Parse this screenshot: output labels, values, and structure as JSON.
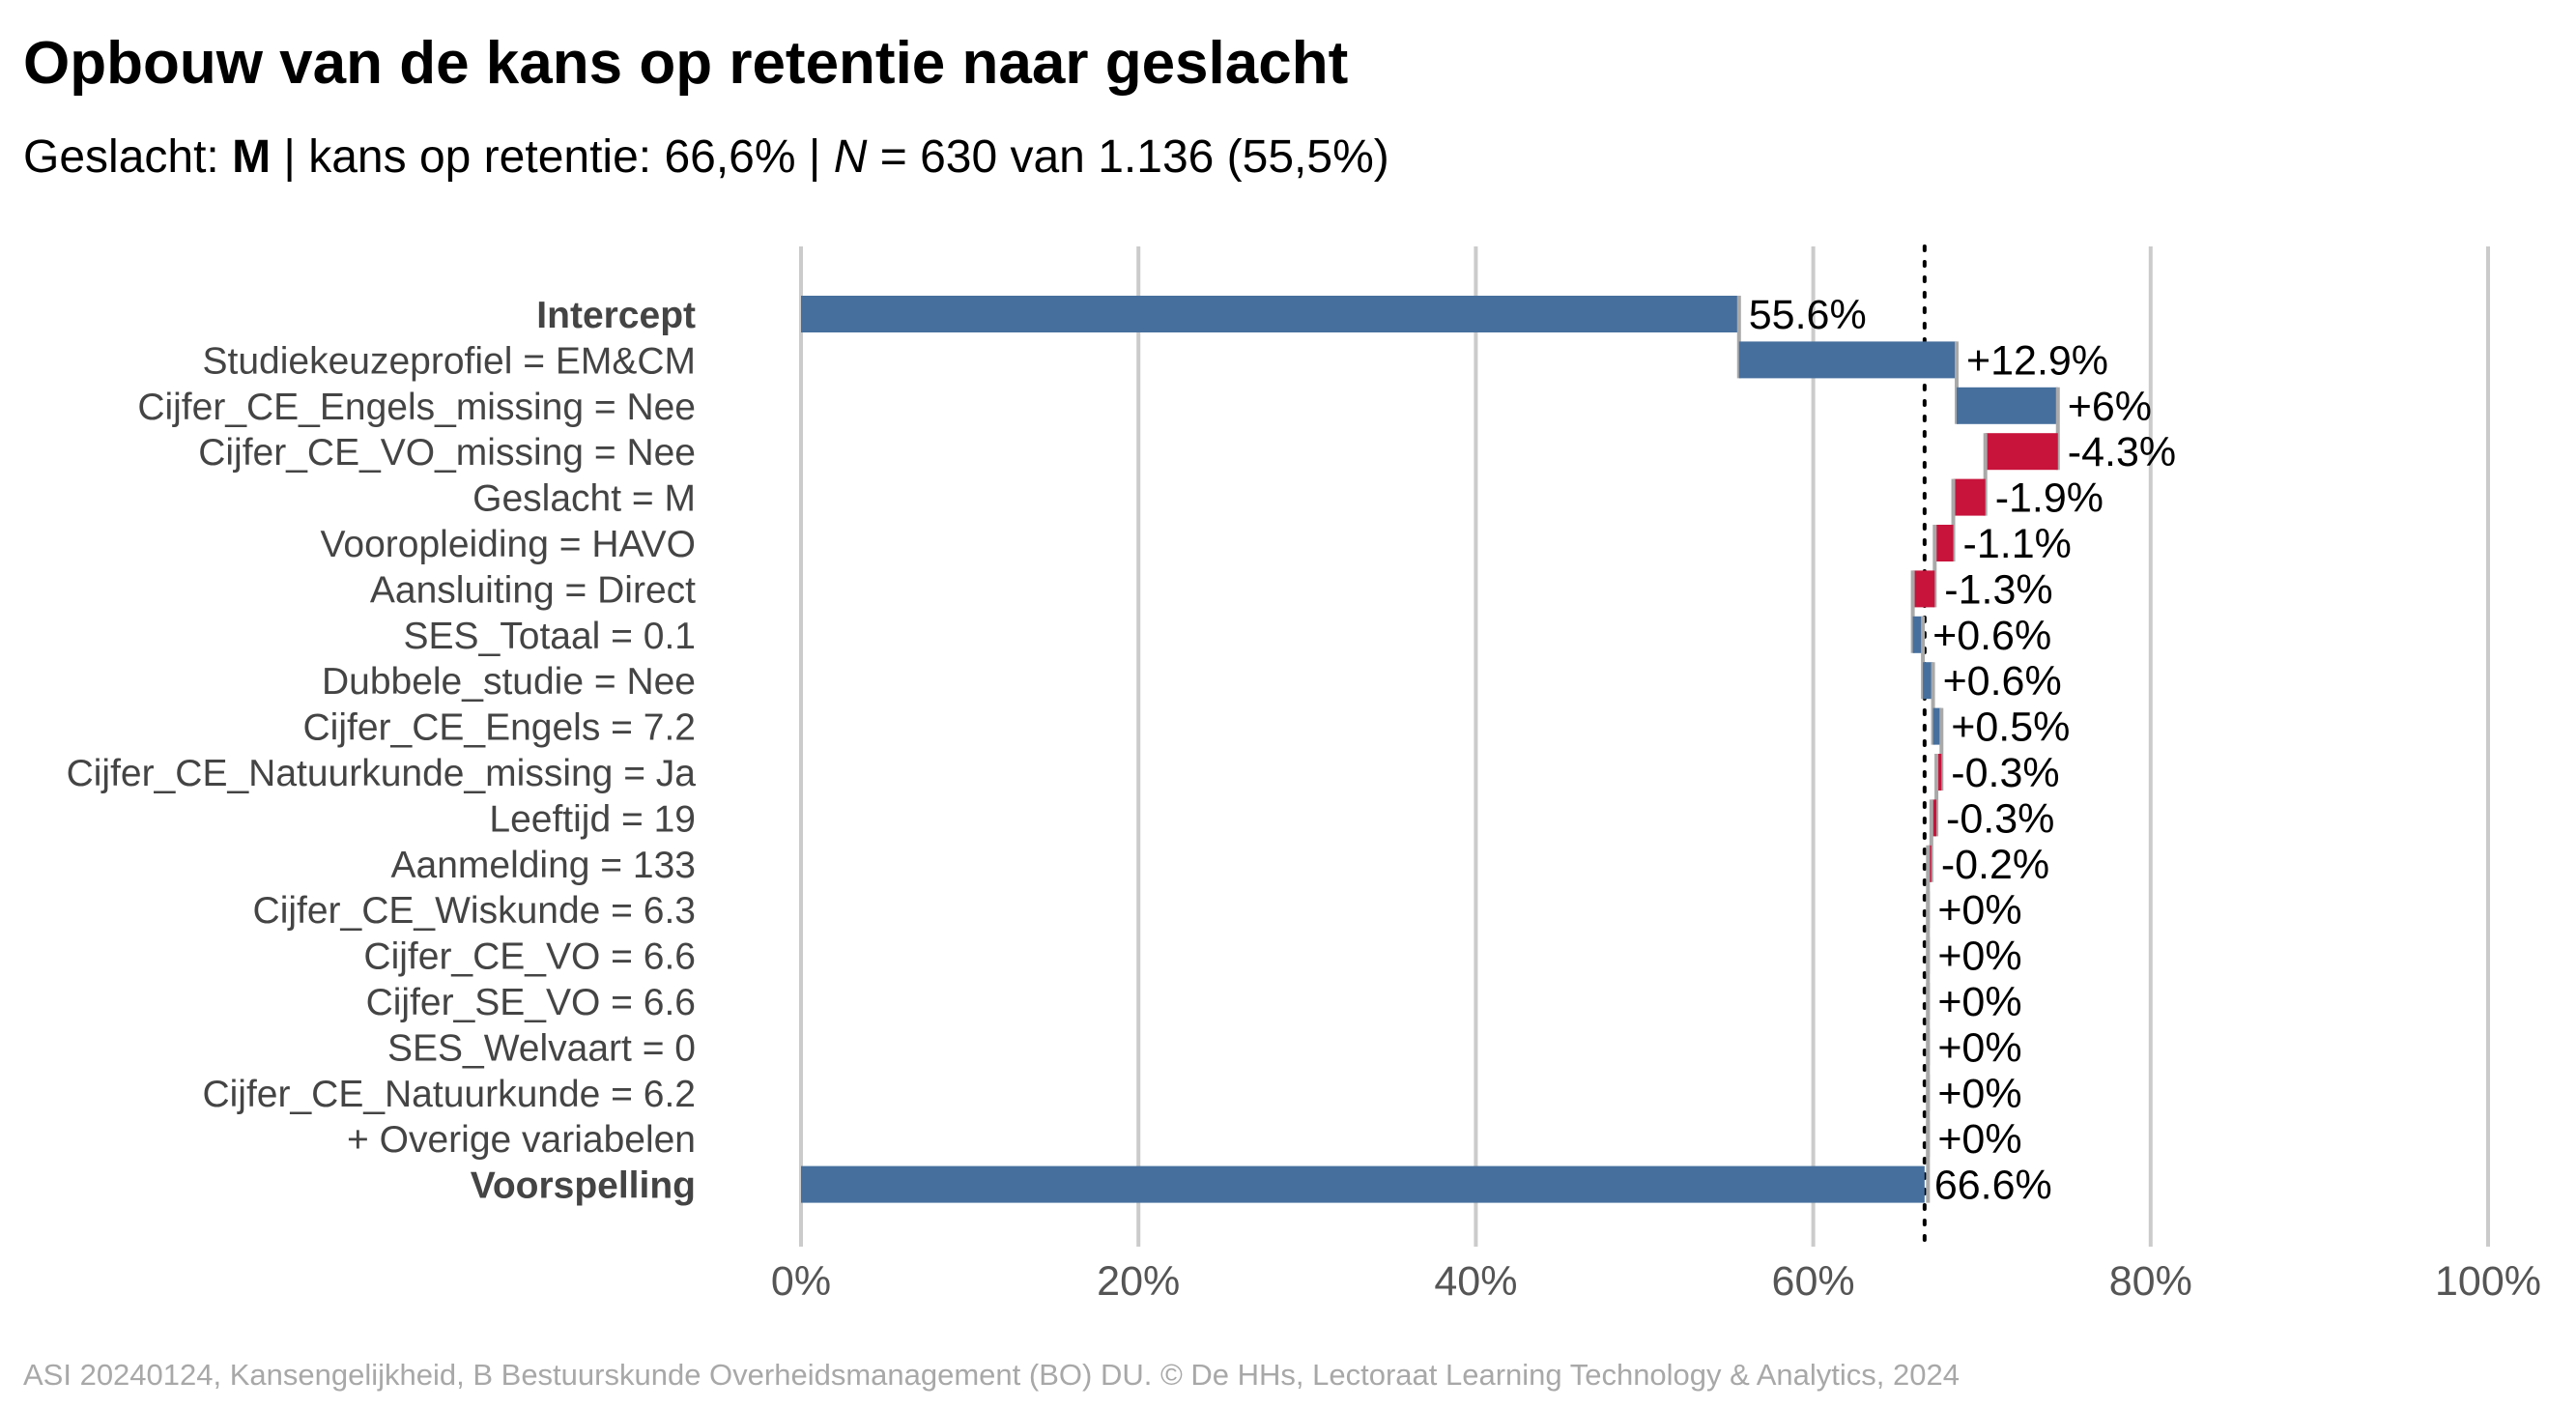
{
  "title": "Opbouw van de kans op retentie naar geslacht",
  "subtitle": {
    "prefix": "Geslacht: ",
    "group": "M",
    "mid": " | kans op retentie: 66,6% | ",
    "n_symbol": "N",
    "suffix": " = 630 van 1.136 (55,5%)"
  },
  "caption": "ASI 20240124, Kansengelijkheid, B Bestuurskunde Overheidsmanagement (BO) DU. © De HHs, Lectoraat Learning Technology & Analytics, 2024",
  "colors": {
    "positive": "#466f9d",
    "negative": "#c8133b",
    "grid": "#cbcbcb",
    "connector": "#a9a9a9"
  },
  "chart_data": {
    "type": "bar",
    "subtype": "waterfall",
    "orientation": "horizontal",
    "x_axis": {
      "range": [
        0,
        100
      ],
      "ticks": [
        0,
        20,
        40,
        60,
        80,
        100
      ],
      "tick_labels": [
        "0%",
        "20%",
        "40%",
        "60%",
        "80%",
        "100%"
      ]
    },
    "reference_line": 66.6,
    "grid": true,
    "bars": [
      {
        "label": "Intercept",
        "bold": true,
        "kind": "total",
        "value": 55.6,
        "data_label": "55.6%"
      },
      {
        "label": "Studiekeuzeprofiel = EM&CM",
        "value": 12.9,
        "data_label": "+12.9%"
      },
      {
        "label": "Cijfer_CE_Engels_missing = Nee",
        "value": 6.0,
        "data_label": "+6%"
      },
      {
        "label": "Cijfer_CE_VO_missing = Nee",
        "value": -4.3,
        "data_label": "-4.3%"
      },
      {
        "label": "Geslacht = M",
        "value": -1.9,
        "data_label": "-1.9%"
      },
      {
        "label": "Vooropleiding = HAVO",
        "value": -1.1,
        "data_label": "-1.1%"
      },
      {
        "label": "Aansluiting = Direct",
        "value": -1.3,
        "data_label": "-1.3%"
      },
      {
        "label": "SES_Totaal = 0.1",
        "value": 0.6,
        "data_label": "+0.6%"
      },
      {
        "label": "Dubbele_studie = Nee",
        "value": 0.6,
        "data_label": "+0.6%"
      },
      {
        "label": "Cijfer_CE_Engels = 7.2",
        "value": 0.5,
        "data_label": "+0.5%"
      },
      {
        "label": "Cijfer_CE_Natuurkunde_missing = Ja",
        "value": -0.3,
        "data_label": "-0.3%"
      },
      {
        "label": "Leeftijd = 19",
        "value": -0.3,
        "data_label": "-0.3%"
      },
      {
        "label": "Aanmelding = 133",
        "value": -0.2,
        "data_label": "-0.2%"
      },
      {
        "label": "Cijfer_CE_Wiskunde = 6.3",
        "value": 0,
        "data_label": "+0%"
      },
      {
        "label": "Cijfer_CE_VO = 6.6",
        "value": 0,
        "data_label": "+0%"
      },
      {
        "label": "Cijfer_SE_VO = 6.6",
        "value": 0,
        "data_label": "+0%"
      },
      {
        "label": "SES_Welvaart = 0",
        "value": 0,
        "data_label": "+0%"
      },
      {
        "label": "Cijfer_CE_Natuurkunde = 6.2",
        "value": 0,
        "data_label": "+0%"
      },
      {
        "label": "+ Overige variabelen",
        "value": 0,
        "data_label": "+0%"
      },
      {
        "label": "Voorspelling",
        "bold": true,
        "kind": "total",
        "value": 66.6,
        "data_label": "66.6%"
      }
    ]
  }
}
